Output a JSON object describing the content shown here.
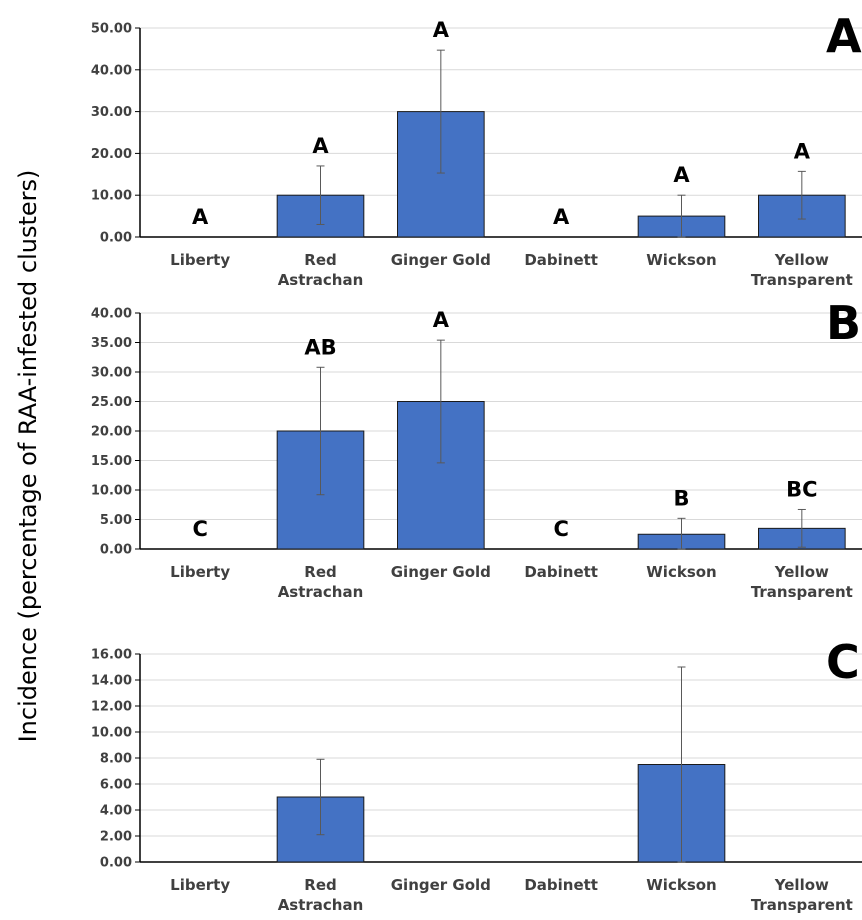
{
  "ylabel": "Incidence (percentage of RAA-infested clusters)",
  "colors": {
    "bar": "#4472C4",
    "bar_edge": "#1a1a1a",
    "grid": "#d9d9d9",
    "axis": "#000000",
    "error": "#595959"
  },
  "chart_data": [
    {
      "type": "bar",
      "panel": "A",
      "categories": [
        "Liberty",
        "Red|Astrachan",
        "Ginger Gold",
        "Dabinett",
        "Wickson",
        "Yellow|Transparent"
      ],
      "values": [
        0,
        10,
        30,
        0,
        5,
        10
      ],
      "errors": [
        0,
        7,
        14.7,
        0,
        5,
        5.7
      ],
      "significance": [
        "A",
        "A",
        "A",
        "A",
        "A",
        "A"
      ],
      "ylim": [
        0,
        50
      ],
      "yticks": [
        0,
        10,
        20,
        30,
        40,
        50
      ],
      "grid": true
    },
    {
      "type": "bar",
      "panel": "B",
      "categories": [
        "Liberty",
        "Red|Astrachan",
        "Ginger Gold",
        "Dabinett",
        "Wickson",
        "Yellow|Transparent"
      ],
      "values": [
        0,
        20,
        25,
        0,
        2.5,
        3.5
      ],
      "errors": [
        0,
        10.8,
        10.4,
        0,
        2.7,
        3.2
      ],
      "significance": [
        "C",
        "AB",
        "A",
        "C",
        "B",
        "BC"
      ],
      "ylim": [
        0,
        40
      ],
      "yticks": [
        0,
        5,
        10,
        15,
        20,
        25,
        30,
        35,
        40
      ],
      "grid": true
    },
    {
      "type": "bar",
      "panel": "C",
      "categories": [
        "Liberty",
        "Red|Astrachan",
        "Ginger Gold",
        "Dabinett",
        "Wickson",
        "Yellow|Transparent"
      ],
      "values": [
        0,
        5,
        0,
        0,
        7.5,
        0
      ],
      "errors": [
        0,
        2.9,
        0,
        0,
        7.5,
        0
      ],
      "significance": [
        "",
        "",
        "",
        "",
        "",
        ""
      ],
      "ylim": [
        0,
        16
      ],
      "yticks": [
        0,
        2,
        4,
        6,
        8,
        10,
        12,
        14,
        16
      ],
      "grid": true
    }
  ]
}
